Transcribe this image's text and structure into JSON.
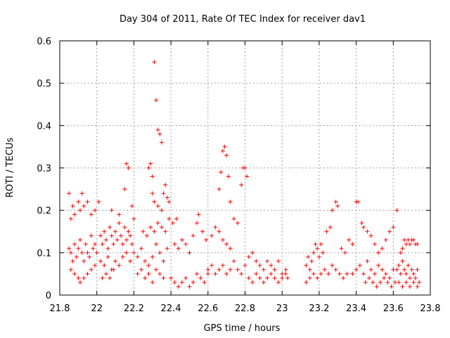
{
  "chart_data": {
    "type": "scatter",
    "title": "Day 304 of 2011, Rate Of TEC Index for receiver dav1",
    "xlabel": "GPS time / hours",
    "ylabel": "ROTI / TECUs",
    "xlim": [
      21.8,
      23.8
    ],
    "ylim": [
      0,
      0.6
    ],
    "xticks": [
      "21.8",
      "22",
      "22.2",
      "22.4",
      "22.6",
      "22.8",
      "23",
      "23.2",
      "23.4",
      "23.6",
      "23.8"
    ],
    "yticks": [
      "0",
      "0.1",
      "0.2",
      "0.3",
      "0.4",
      "0.5",
      "0.6"
    ],
    "grid": true,
    "marker": "plus",
    "color": "#ff0000",
    "series": [
      {
        "points": [
          [
            21.85,
            0.24
          ],
          [
            21.86,
            0.18
          ],
          [
            21.87,
            0.21
          ],
          [
            21.88,
            0.19
          ],
          [
            21.9,
            0.22
          ],
          [
            21.91,
            0.2
          ],
          [
            21.92,
            0.24
          ],
          [
            21.93,
            0.21
          ],
          [
            21.95,
            0.22
          ],
          [
            21.97,
            0.19
          ],
          [
            21.99,
            0.2
          ],
          [
            22.01,
            0.22
          ],
          [
            21.85,
            0.11
          ],
          [
            21.86,
            0.1
          ],
          [
            21.87,
            0.08
          ],
          [
            21.88,
            0.12
          ],
          [
            21.89,
            0.09
          ],
          [
            21.9,
            0.11
          ],
          [
            21.91,
            0.13
          ],
          [
            21.92,
            0.1
          ],
          [
            21.93,
            0.08
          ],
          [
            21.94,
            0.12
          ],
          [
            21.95,
            0.1
          ],
          [
            21.96,
            0.09
          ],
          [
            21.97,
            0.14
          ],
          [
            21.98,
            0.11
          ],
          [
            21.99,
            0.12
          ],
          [
            22.0,
            0.1
          ],
          [
            21.86,
            0.06
          ],
          [
            21.88,
            0.05
          ],
          [
            21.9,
            0.04
          ],
          [
            21.91,
            0.03
          ],
          [
            21.93,
            0.04
          ],
          [
            21.95,
            0.05
          ],
          [
            21.97,
            0.06
          ],
          [
            21.99,
            0.07
          ],
          [
            22.02,
            0.14
          ],
          [
            22.03,
            0.12
          ],
          [
            22.04,
            0.15
          ],
          [
            22.05,
            0.13
          ],
          [
            22.06,
            0.11
          ],
          [
            22.07,
            0.16
          ],
          [
            22.08,
            0.14
          ],
          [
            22.09,
            0.12
          ],
          [
            22.1,
            0.15
          ],
          [
            22.11,
            0.13
          ],
          [
            22.12,
            0.17
          ],
          [
            22.13,
            0.14
          ],
          [
            22.14,
            0.12
          ],
          [
            22.15,
            0.16
          ],
          [
            22.16,
            0.13
          ],
          [
            22.17,
            0.15
          ],
          [
            22.18,
            0.14
          ],
          [
            22.19,
            0.12
          ],
          [
            22.02,
            0.08
          ],
          [
            22.04,
            0.07
          ],
          [
            22.06,
            0.09
          ],
          [
            22.08,
            0.06
          ],
          [
            22.1,
            0.08
          ],
          [
            22.12,
            0.07
          ],
          [
            22.14,
            0.09
          ],
          [
            22.16,
            0.1
          ],
          [
            22.18,
            0.08
          ],
          [
            22.03,
            0.04
          ],
          [
            22.05,
            0.05
          ],
          [
            22.07,
            0.04
          ],
          [
            22.09,
            0.06
          ],
          [
            22.08,
            0.2
          ],
          [
            22.12,
            0.19
          ],
          [
            22.15,
            0.25
          ],
          [
            22.16,
            0.31
          ],
          [
            22.17,
            0.3
          ],
          [
            22.19,
            0.21
          ],
          [
            22.2,
            0.18
          ],
          [
            22.2,
            0.1
          ],
          [
            22.22,
            0.09
          ],
          [
            22.24,
            0.11
          ],
          [
            22.26,
            0.08
          ],
          [
            22.28,
            0.07
          ],
          [
            22.3,
            0.09
          ],
          [
            22.32,
            0.12
          ],
          [
            22.34,
            0.1
          ],
          [
            22.36,
            0.08
          ],
          [
            22.38,
            0.11
          ],
          [
            22.22,
            0.05
          ],
          [
            22.24,
            0.06
          ],
          [
            22.26,
            0.04
          ],
          [
            22.28,
            0.05
          ],
          [
            22.3,
            0.03
          ],
          [
            22.32,
            0.06
          ],
          [
            22.34,
            0.05
          ],
          [
            22.36,
            0.04
          ],
          [
            22.28,
            0.3
          ],
          [
            22.29,
            0.31
          ],
          [
            22.3,
            0.28
          ],
          [
            22.31,
            0.55
          ],
          [
            22.32,
            0.46
          ],
          [
            22.33,
            0.39
          ],
          [
            22.34,
            0.38
          ],
          [
            22.35,
            0.36
          ],
          [
            22.36,
            0.24
          ],
          [
            22.37,
            0.26
          ],
          [
            22.38,
            0.23
          ],
          [
            22.39,
            0.22
          ],
          [
            22.3,
            0.24
          ],
          [
            22.31,
            0.22
          ],
          [
            22.33,
            0.21
          ],
          [
            22.35,
            0.2
          ],
          [
            22.25,
            0.15
          ],
          [
            22.27,
            0.14
          ],
          [
            22.29,
            0.16
          ],
          [
            22.31,
            0.15
          ],
          [
            22.33,
            0.17
          ],
          [
            22.35,
            0.16
          ],
          [
            22.37,
            0.15
          ],
          [
            22.39,
            0.18
          ],
          [
            22.41,
            0.17
          ],
          [
            22.43,
            0.18
          ],
          [
            22.4,
            0.04
          ],
          [
            22.42,
            0.03
          ],
          [
            22.44,
            0.02
          ],
          [
            22.46,
            0.03
          ],
          [
            22.48,
            0.04
          ],
          [
            22.5,
            0.02
          ],
          [
            22.52,
            0.03
          ],
          [
            22.54,
            0.05
          ],
          [
            22.56,
            0.04
          ],
          [
            22.58,
            0.03
          ],
          [
            22.6,
            0.05
          ],
          [
            22.42,
            0.12
          ],
          [
            22.44,
            0.11
          ],
          [
            22.46,
            0.13
          ],
          [
            22.48,
            0.12
          ],
          [
            22.5,
            0.1
          ],
          [
            22.52,
            0.14
          ],
          [
            22.54,
            0.17
          ],
          [
            22.55,
            0.19
          ],
          [
            22.57,
            0.15
          ],
          [
            22.59,
            0.13
          ],
          [
            22.6,
            0.06
          ],
          [
            22.62,
            0.07
          ],
          [
            22.64,
            0.05
          ],
          [
            22.66,
            0.06
          ],
          [
            22.68,
            0.07
          ],
          [
            22.7,
            0.05
          ],
          [
            22.72,
            0.06
          ],
          [
            22.74,
            0.08
          ],
          [
            22.76,
            0.06
          ],
          [
            22.78,
            0.05
          ],
          [
            22.8,
            0.07
          ],
          [
            22.62,
            0.14
          ],
          [
            22.64,
            0.16
          ],
          [
            22.66,
            0.15
          ],
          [
            22.68,
            0.13
          ],
          [
            22.7,
            0.12
          ],
          [
            22.72,
            0.11
          ],
          [
            22.74,
            0.18
          ],
          [
            22.76,
            0.17
          ],
          [
            22.66,
            0.25
          ],
          [
            22.67,
            0.29
          ],
          [
            22.68,
            0.34
          ],
          [
            22.69,
            0.35
          ],
          [
            22.7,
            0.33
          ],
          [
            22.71,
            0.28
          ],
          [
            22.72,
            0.22
          ],
          [
            22.78,
            0.26
          ],
          [
            22.79,
            0.3
          ],
          [
            22.8,
            0.3
          ],
          [
            22.81,
            0.28
          ],
          [
            22.82,
            0.09
          ],
          [
            22.84,
            0.1
          ],
          [
            22.86,
            0.08
          ],
          [
            22.88,
            0.07
          ],
          [
            22.9,
            0.06
          ],
          [
            22.92,
            0.08
          ],
          [
            22.94,
            0.07
          ],
          [
            22.96,
            0.06
          ],
          [
            22.98,
            0.08
          ],
          [
            23.0,
            0.05
          ],
          [
            23.02,
            0.06
          ],
          [
            22.82,
            0.04
          ],
          [
            22.84,
            0.03
          ],
          [
            22.86,
            0.05
          ],
          [
            22.88,
            0.04
          ],
          [
            22.9,
            0.03
          ],
          [
            22.92,
            0.04
          ],
          [
            22.94,
            0.05
          ],
          [
            22.96,
            0.04
          ],
          [
            22.98,
            0.03
          ],
          [
            23.0,
            0.04
          ],
          [
            23.02,
            0.05
          ],
          [
            23.03,
            0.04
          ],
          [
            23.13,
            0.07
          ],
          [
            23.14,
            0.09
          ],
          [
            23.15,
            0.06
          ],
          [
            23.16,
            0.08
          ],
          [
            23.17,
            0.1
          ],
          [
            23.18,
            0.12
          ],
          [
            23.19,
            0.11
          ],
          [
            23.2,
            0.09
          ],
          [
            23.21,
            0.12
          ],
          [
            23.22,
            0.1
          ],
          [
            23.13,
            0.03
          ],
          [
            23.15,
            0.04
          ],
          [
            23.17,
            0.05
          ],
          [
            23.19,
            0.04
          ],
          [
            23.21,
            0.05
          ],
          [
            23.23,
            0.06
          ],
          [
            23.25,
            0.05
          ],
          [
            23.27,
            0.07
          ],
          [
            23.29,
            0.06
          ],
          [
            23.31,
            0.05
          ],
          [
            23.33,
            0.04
          ],
          [
            23.35,
            0.05
          ],
          [
            23.24,
            0.15
          ],
          [
            23.26,
            0.16
          ],
          [
            23.27,
            0.2
          ],
          [
            23.29,
            0.22
          ],
          [
            23.3,
            0.21
          ],
          [
            23.32,
            0.11
          ],
          [
            23.34,
            0.1
          ],
          [
            23.36,
            0.13
          ],
          [
            23.38,
            0.12
          ],
          [
            23.38,
            0.05
          ],
          [
            23.4,
            0.06
          ],
          [
            23.42,
            0.07
          ],
          [
            23.44,
            0.05
          ],
          [
            23.46,
            0.08
          ],
          [
            23.48,
            0.06
          ],
          [
            23.5,
            0.05
          ],
          [
            23.52,
            0.07
          ],
          [
            23.54,
            0.06
          ],
          [
            23.56,
            0.05
          ],
          [
            23.58,
            0.04
          ],
          [
            23.6,
            0.06
          ],
          [
            23.4,
            0.22
          ],
          [
            23.41,
            0.22
          ],
          [
            23.43,
            0.17
          ],
          [
            23.44,
            0.16
          ],
          [
            23.46,
            0.15
          ],
          [
            23.48,
            0.14
          ],
          [
            23.5,
            0.12
          ],
          [
            23.52,
            0.1
          ],
          [
            23.54,
            0.11
          ],
          [
            23.56,
            0.13
          ],
          [
            23.58,
            0.15
          ],
          [
            23.6,
            0.16
          ],
          [
            23.62,
            0.2
          ],
          [
            23.45,
            0.03
          ],
          [
            23.47,
            0.04
          ],
          [
            23.49,
            0.03
          ],
          [
            23.51,
            0.02
          ],
          [
            23.53,
            0.03
          ],
          [
            23.55,
            0.04
          ],
          [
            23.57,
            0.03
          ],
          [
            23.59,
            0.02
          ],
          [
            23.61,
            0.03
          ],
          [
            23.62,
            0.06
          ],
          [
            23.63,
            0.07
          ],
          [
            23.64,
            0.05
          ],
          [
            23.65,
            0.08
          ],
          [
            23.66,
            0.06
          ],
          [
            23.67,
            0.05
          ],
          [
            23.68,
            0.07
          ],
          [
            23.69,
            0.04
          ],
          [
            23.7,
            0.06
          ],
          [
            23.71,
            0.05
          ],
          [
            23.72,
            0.04
          ],
          [
            23.73,
            0.06
          ],
          [
            23.64,
            0.1
          ],
          [
            23.65,
            0.11
          ],
          [
            23.66,
            0.13
          ],
          [
            23.67,
            0.12
          ],
          [
            23.68,
            0.13
          ],
          [
            23.69,
            0.12
          ],
          [
            23.7,
            0.13
          ],
          [
            23.71,
            0.13
          ],
          [
            23.72,
            0.12
          ],
          [
            23.73,
            0.12
          ],
          [
            23.63,
            0.03
          ],
          [
            23.65,
            0.02
          ],
          [
            23.67,
            0.03
          ],
          [
            23.69,
            0.02
          ],
          [
            23.71,
            0.03
          ],
          [
            23.73,
            0.02
          ],
          [
            23.74,
            0.03
          ]
        ]
      }
    ]
  }
}
